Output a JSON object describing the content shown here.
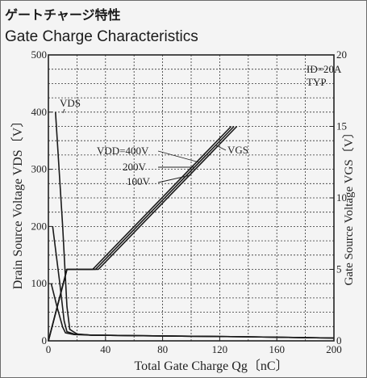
{
  "header": {
    "title_jp": "ゲートチャージ特性",
    "title_en": "Gate Charge Characteristics"
  },
  "chart_data": {
    "type": "line",
    "title": "Gate Charge Characteristics",
    "xlabel": "Total Gate Charge  Qg〔nC〕",
    "ylabel_left": "Drain Source Voltage  VDS〔V〕",
    "ylabel_right": "Gate Source Voltage  VGS〔V〕",
    "xlim": [
      0,
      200
    ],
    "ylim_left": [
      0,
      500
    ],
    "ylim_right": [
      0,
      20
    ],
    "x_ticks": [
      "0",
      "40",
      "80",
      "120",
      "160",
      "200"
    ],
    "y_left_ticks": [
      "0",
      "100",
      "200",
      "300",
      "400",
      "500"
    ],
    "y_right_ticks": [
      "0",
      "5",
      "10",
      "15",
      "20"
    ],
    "grid": true,
    "conditions": [
      "ID=20A",
      "TYP"
    ],
    "annotations": {
      "vds": "VDS",
      "vgs": "VGS",
      "vdd_400": "VDD=400V",
      "vdd_200": "200V",
      "vdd_100": "100V"
    },
    "series": [
      {
        "name": "VDS (VDD=400V)",
        "axis": "left",
        "points": [
          [
            5,
            400
          ],
          [
            10,
            200
          ],
          [
            13,
            60
          ],
          [
            15,
            20
          ],
          [
            20,
            12
          ],
          [
            30,
            10
          ],
          [
            60,
            9
          ],
          [
            100,
            8
          ],
          [
            140,
            7
          ],
          [
            200,
            5
          ]
        ]
      },
      {
        "name": "VDS (VDD=200V)",
        "axis": "left",
        "points": [
          [
            3,
            200
          ],
          [
            8,
            100
          ],
          [
            11,
            35
          ],
          [
            13,
            16
          ],
          [
            18,
            12
          ],
          [
            30,
            10
          ],
          [
            60,
            9
          ],
          [
            100,
            8
          ],
          [
            140,
            7
          ],
          [
            200,
            5
          ]
        ]
      },
      {
        "name": "VDS (VDD=100V)",
        "axis": "left",
        "points": [
          [
            2,
            100
          ],
          [
            6,
            60
          ],
          [
            10,
            24
          ],
          [
            12,
            14
          ],
          [
            18,
            11
          ],
          [
            30,
            10
          ],
          [
            60,
            9
          ],
          [
            100,
            8
          ],
          [
            140,
            7
          ],
          [
            200,
            5
          ]
        ]
      },
      {
        "name": "VGS (VDD=400V)",
        "axis": "right",
        "points": [
          [
            0,
            0
          ],
          [
            13,
            5
          ],
          [
            35,
            5
          ],
          [
            132,
            15
          ]
        ]
      },
      {
        "name": "VGS (VDD=200V)",
        "axis": "right",
        "points": [
          [
            0,
            0
          ],
          [
            13,
            5
          ],
          [
            33,
            5
          ],
          [
            130,
            15
          ]
        ]
      },
      {
        "name": "VGS (VDD=100V)",
        "axis": "right",
        "points": [
          [
            0,
            0
          ],
          [
            13,
            5
          ],
          [
            31,
            5
          ],
          [
            128,
            15
          ]
        ]
      }
    ]
  }
}
